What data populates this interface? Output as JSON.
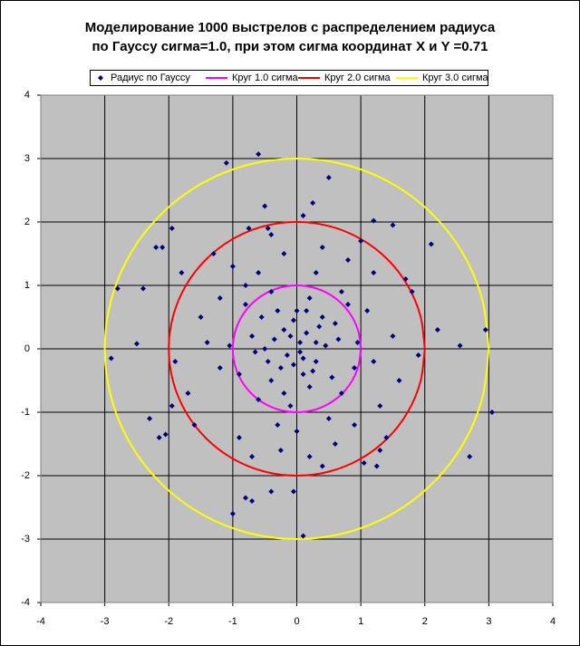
{
  "chart_data": {
    "type": "scatter",
    "title": [
      "Моделирование 1000 выстрелов с распределением радиуса",
      "по Гауссу сигма=1.0, при этом сигма координат X и Y =0.71"
    ],
    "xlim": [
      -4,
      4
    ],
    "ylim": [
      -4,
      4
    ],
    "xticks": [
      -4,
      -3,
      -2,
      -1,
      0,
      1,
      2,
      3,
      4
    ],
    "yticks": [
      -4,
      -3,
      -2,
      -1,
      0,
      1,
      2,
      3,
      4
    ],
    "grid": true,
    "legend": "top",
    "series": [
      {
        "name": "Радиус по Гауссу",
        "type": "scatter",
        "color": "#000080",
        "x": [
          -1.1,
          -0.6,
          0.1,
          -1.0,
          -0.8,
          -0.7,
          -0.4,
          -0.05,
          -2.8,
          -2.9,
          -2.5,
          -2.4,
          -2.2,
          -2.1,
          -1.95,
          -2.3,
          -2.15,
          -2.05,
          -1.95,
          2.1,
          2.55,
          2.95,
          3.05,
          2.7,
          1.2,
          1.5,
          0.5,
          0.25,
          0.1,
          -0.5,
          -0.45,
          1.25,
          1.3,
          1.05,
          0.4,
          -0.25,
          -0.75,
          2.2,
          0.05,
          -0.2,
          0.3,
          -0.4,
          0.6,
          -0.7,
          0.2,
          -0.1,
          0.9,
          -0.9,
          0.4,
          -0.3,
          0.1,
          -0.5,
          0.7,
          -0.6,
          0.3,
          -0.8,
          1.1,
          -1.2,
          0.0,
          1.3,
          -1.0,
          0.5,
          -0.2,
          1.5,
          -1.5,
          0.8,
          -0.9,
          1.6,
          -1.7,
          0.2,
          -0.4,
          1.0,
          -1.3,
          1.8,
          -1.8,
          1.4,
          0.15,
          -0.15,
          0.25,
          -0.35,
          0.45,
          -0.05,
          0.1,
          -0.25,
          0.35,
          -0.45,
          0.55,
          -0.55,
          0.0,
          0.65,
          -0.65,
          0.2,
          -0.1,
          0.05,
          0.8,
          -0.8,
          0.95,
          -1.05,
          1.2,
          -1.2,
          0.6,
          -0.6,
          1.7,
          -1.6,
          1.9,
          -1.9,
          0.9,
          -0.3,
          0.4,
          -0.7,
          1.2,
          -1.4,
          0.7,
          -0.2,
          0.3,
          -0.05,
          0.15,
          -0.4
        ],
        "y": [
          2.93,
          3.07,
          -2.95,
          -2.6,
          -2.35,
          -2.4,
          -2.25,
          -2.25,
          0.95,
          -0.15,
          0.08,
          0.95,
          1.6,
          1.6,
          1.9,
          -1.1,
          -1.4,
          -1.35,
          -0.9,
          1.65,
          0.05,
          0.3,
          -1.0,
          -1.7,
          2.02,
          1.95,
          2.7,
          2.3,
          2.1,
          2.25,
          1.9,
          -1.85,
          -1.6,
          -1.8,
          -1.85,
          -1.6,
          1.9,
          0.3,
          0.1,
          0.3,
          -0.2,
          -0.5,
          0.4,
          0.2,
          0.8,
          -0.9,
          -0.3,
          -0.4,
          0.5,
          0.6,
          -0.4,
          0.0,
          -0.7,
          -0.8,
          1.2,
          1.0,
          0.6,
          -0.3,
          -1.3,
          -0.9,
          1.3,
          -1.1,
          1.5,
          0.2,
          0.5,
          1.4,
          -1.4,
          -0.5,
          -0.7,
          -1.7,
          1.8,
          1.7,
          1.5,
          0.9,
          1.2,
          -1.4,
          0.25,
          -0.1,
          -0.35,
          0.15,
          0.05,
          0.45,
          -0.15,
          -0.3,
          0.35,
          -0.2,
          -0.45,
          0.5,
          0.6,
          0.15,
          -0.05,
          -0.6,
          0.2,
          -0.05,
          0.7,
          0.7,
          0.1,
          0.05,
          -0.2,
          0.8,
          -1.5,
          1.2,
          1.1,
          -1.2,
          -0.1,
          -0.2,
          -1.2,
          -1.2,
          1.6,
          -1.7,
          1.2,
          0.1,
          0.9,
          -0.7,
          0.1,
          -0.25,
          0.6,
          0.9
        ]
      },
      {
        "name": "Круг 1.0 сигма",
        "type": "line",
        "color": "#ff00ff",
        "x": [
          1,
          0.966,
          0.866,
          0.707,
          0.5,
          0.259,
          0,
          -0.259,
          -0.5,
          -0.707,
          -0.866,
          -0.966,
          -1,
          -0.966,
          -0.866,
          -0.707,
          -0.5,
          -0.259,
          0,
          0.259,
          0.5,
          0.707,
          0.866,
          0.966,
          1
        ],
        "y": [
          0,
          0.259,
          0.5,
          0.707,
          0.866,
          0.966,
          1,
          0.966,
          0.866,
          0.707,
          0.5,
          0.259,
          0,
          -0.259,
          -0.5,
          -0.707,
          -0.866,
          -0.966,
          -1,
          -0.966,
          -0.866,
          -0.707,
          -0.5,
          -0.259,
          0
        ]
      },
      {
        "name": "Круг 2.0 сигма",
        "type": "line",
        "color": "#ff0000",
        "x": [
          2,
          1.932,
          1.732,
          1.414,
          1,
          0.518,
          0,
          -0.518,
          -1,
          -1.414,
          -1.732,
          -1.932,
          -2,
          -1.932,
          -1.732,
          -1.414,
          -1,
          -0.518,
          0,
          0.518,
          1,
          1.414,
          1.732,
          1.932,
          2
        ],
        "y": [
          0,
          0.518,
          1,
          1.414,
          1.732,
          1.932,
          2,
          1.932,
          1.732,
          1.414,
          1,
          0.518,
          0,
          -0.518,
          -1,
          -1.414,
          -1.732,
          -1.932,
          -2,
          -1.932,
          -1.732,
          -1.414,
          -1,
          -0.518,
          0
        ]
      },
      {
        "name": "Круг 3.0 сигма",
        "type": "line",
        "color": "#ffff00",
        "x": [
          3,
          2.898,
          2.598,
          2.121,
          1.5,
          0.776,
          0,
          -0.776,
          -1.5,
          -2.121,
          -2.598,
          -2.898,
          -3,
          -2.898,
          -2.598,
          -2.121,
          -1.5,
          -0.776,
          0,
          0.776,
          1.5,
          2.121,
          2.598,
          2.898,
          3
        ],
        "y": [
          0,
          0.776,
          1.5,
          2.121,
          2.598,
          2.898,
          3,
          2.898,
          2.598,
          2.121,
          1.5,
          0.776,
          0,
          -0.776,
          -1.5,
          -2.121,
          -2.598,
          -2.898,
          -3,
          -2.898,
          -2.598,
          -2.121,
          -1.5,
          -0.776,
          0
        ]
      }
    ]
  }
}
